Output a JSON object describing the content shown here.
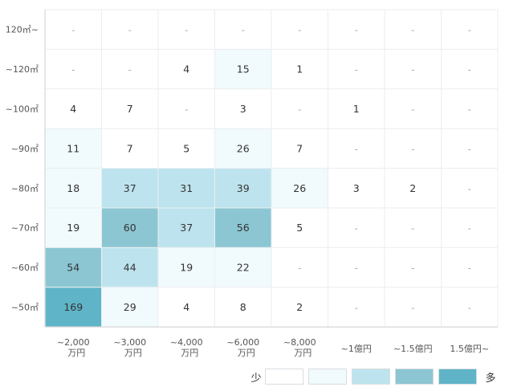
{
  "chart_data": {
    "type": "heatmap",
    "row_labels": [
      "120㎡~",
      "~120㎡",
      "~100㎡",
      "~90㎡",
      "~80㎡",
      "~70㎡",
      "~60㎡",
      "~50㎡"
    ],
    "col_labels": [
      [
        "~2,000",
        "万円"
      ],
      [
        "~3,000",
        "万円"
      ],
      [
        "~4,000",
        "万円"
      ],
      [
        "~6,000",
        "万円"
      ],
      [
        "~8,000",
        "万円"
      ],
      [
        "~1億円"
      ],
      [
        "~1.5億円"
      ],
      [
        "1.5億円~"
      ]
    ],
    "values": [
      [
        null,
        null,
        null,
        null,
        null,
        null,
        null,
        null
      ],
      [
        null,
        null,
        4,
        15,
        1,
        null,
        null,
        null
      ],
      [
        4,
        7,
        null,
        3,
        null,
        1,
        null,
        null
      ],
      [
        11,
        7,
        5,
        26,
        7,
        null,
        null,
        null
      ],
      [
        18,
        37,
        31,
        39,
        26,
        3,
        2,
        null
      ],
      [
        19,
        60,
        37,
        56,
        5,
        null,
        null,
        null
      ],
      [
        54,
        44,
        19,
        22,
        null,
        null,
        null,
        null
      ],
      [
        169,
        29,
        4,
        8,
        2,
        null,
        null,
        null
      ]
    ],
    "empty_label": "-",
    "legend": {
      "low_label": "少",
      "high_label": "多",
      "colors": [
        "#ffffff",
        "#f1fafd",
        "#bde4ee",
        "#8cc6d2",
        "#5fb4c8"
      ]
    },
    "thresholds": [
      10,
      30,
      50,
      100
    ],
    "grid": true
  }
}
